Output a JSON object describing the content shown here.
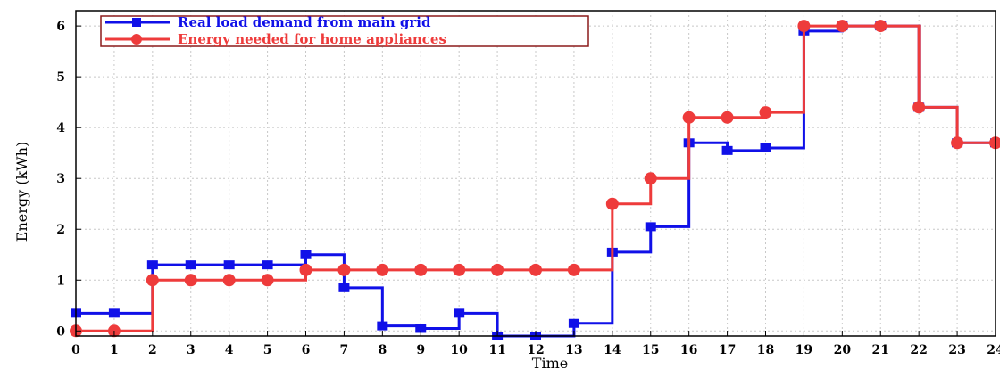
{
  "chart_data": {
    "type": "line",
    "step": "post",
    "xlabel": "Time",
    "ylabel": "Energy (kWh)",
    "xlim": [
      0,
      24
    ],
    "ylim": [
      -0.1,
      6.3
    ],
    "xticks": [
      "0",
      "1",
      "2",
      "3",
      "4",
      "5",
      "6",
      "7",
      "8",
      "9",
      "10",
      "11",
      "12",
      "13",
      "14",
      "15",
      "16",
      "17",
      "18",
      "19",
      "20",
      "21",
      "22",
      "23",
      "24"
    ],
    "yticks": [
      "0",
      "1",
      "2",
      "3",
      "4",
      "5",
      "6"
    ],
    "grid": true,
    "legend_position": "top-left",
    "x": [
      0,
      1,
      2,
      3,
      4,
      5,
      6,
      7,
      8,
      9,
      10,
      11,
      12,
      13,
      14,
      15,
      16,
      17,
      18,
      19,
      20,
      21,
      22,
      23,
      24
    ],
    "series": [
      {
        "name": "Real load demand from main grid",
        "color": "#1010e8",
        "marker": "square",
        "values": [
          0.35,
          0.35,
          1.3,
          1.3,
          1.3,
          1.3,
          1.5,
          0.85,
          0.1,
          0.05,
          0.35,
          -0.1,
          -0.1,
          0.15,
          1.55,
          2.05,
          3.7,
          3.55,
          3.6,
          5.9,
          6.0,
          6.0,
          4.4,
          3.7,
          3.7
        ]
      },
      {
        "name": "Energy needed for home appliances",
        "color": "#ee3b3b",
        "marker": "circle",
        "values": [
          0,
          0,
          1.0,
          1.0,
          1.0,
          1.0,
          1.2,
          1.2,
          1.2,
          1.2,
          1.2,
          1.2,
          1.2,
          1.2,
          2.5,
          3.0,
          4.2,
          4.2,
          4.3,
          6.0,
          6.0,
          6.0,
          4.4,
          3.7,
          3.7
        ]
      }
    ]
  }
}
